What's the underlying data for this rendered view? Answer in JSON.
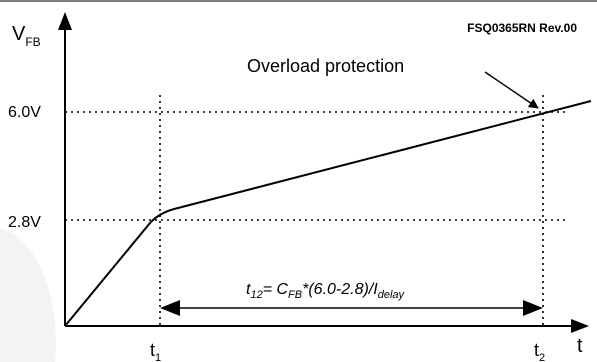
{
  "header": {
    "doc_ref": "FSQ0365RN Rev.00"
  },
  "axes": {
    "y_label_main": "V",
    "y_label_sub": "FB",
    "x_label": "t"
  },
  "levels": {
    "upper": "6.0V",
    "lower": "2.8V"
  },
  "time_markers": {
    "t1_main": "t",
    "t1_sub": "1",
    "t2_main": "t",
    "t2_sub": "2"
  },
  "annotation": {
    "overload": "Overload protection"
  },
  "formula": {
    "t_main": "t",
    "t_sub": "12",
    "eq": "= C",
    "c_sub": "FB",
    "expr": "*(6.0-2.8)/I",
    "i_sub": "delay"
  },
  "colors": {
    "line": "#000000",
    "background": "#ffffff",
    "watermark": "#f2f2f2"
  }
}
